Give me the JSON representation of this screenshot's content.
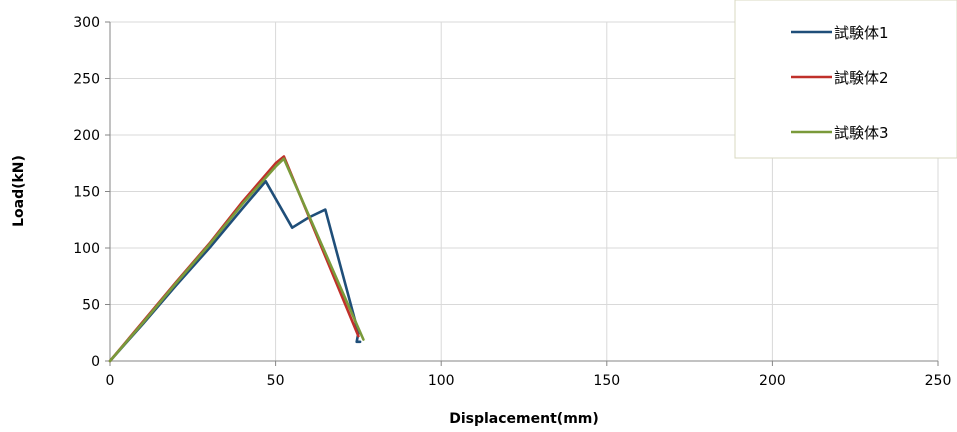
{
  "chart_data": {
    "type": "line",
    "title": "",
    "xlabel": "Displacement(mm)",
    "ylabel": "Load(kN)",
    "xlim": [
      0,
      250
    ],
    "ylim": [
      0,
      300
    ],
    "xticks": [
      0,
      50,
      100,
      150,
      200,
      250
    ],
    "yticks": [
      0,
      50,
      100,
      150,
      200,
      250,
      300
    ],
    "grid": true,
    "legend_position": "top-right",
    "series": [
      {
        "name": "試験体1",
        "color": "#1F4E79",
        "x": [
          0,
          10,
          20,
          30,
          40,
          47,
          55,
          60,
          65,
          75,
          74.5,
          75.5
        ],
        "y": [
          0,
          33,
          67,
          100,
          135,
          159,
          118,
          127,
          134,
          25,
          17,
          17
        ]
      },
      {
        "name": "試験体2",
        "color": "#C0302A",
        "x": [
          0,
          10,
          20,
          30,
          40,
          50,
          52.5,
          75
        ],
        "y": [
          0,
          35,
          70,
          104,
          141,
          175,
          181,
          22
        ]
      },
      {
        "name": "試験体3",
        "color": "#7A9A3A",
        "x": [
          0,
          10,
          20,
          30,
          40,
          50,
          52.5,
          76.5
        ],
        "y": [
          0,
          34,
          69,
          103,
          139,
          172,
          179,
          19
        ]
      }
    ]
  }
}
